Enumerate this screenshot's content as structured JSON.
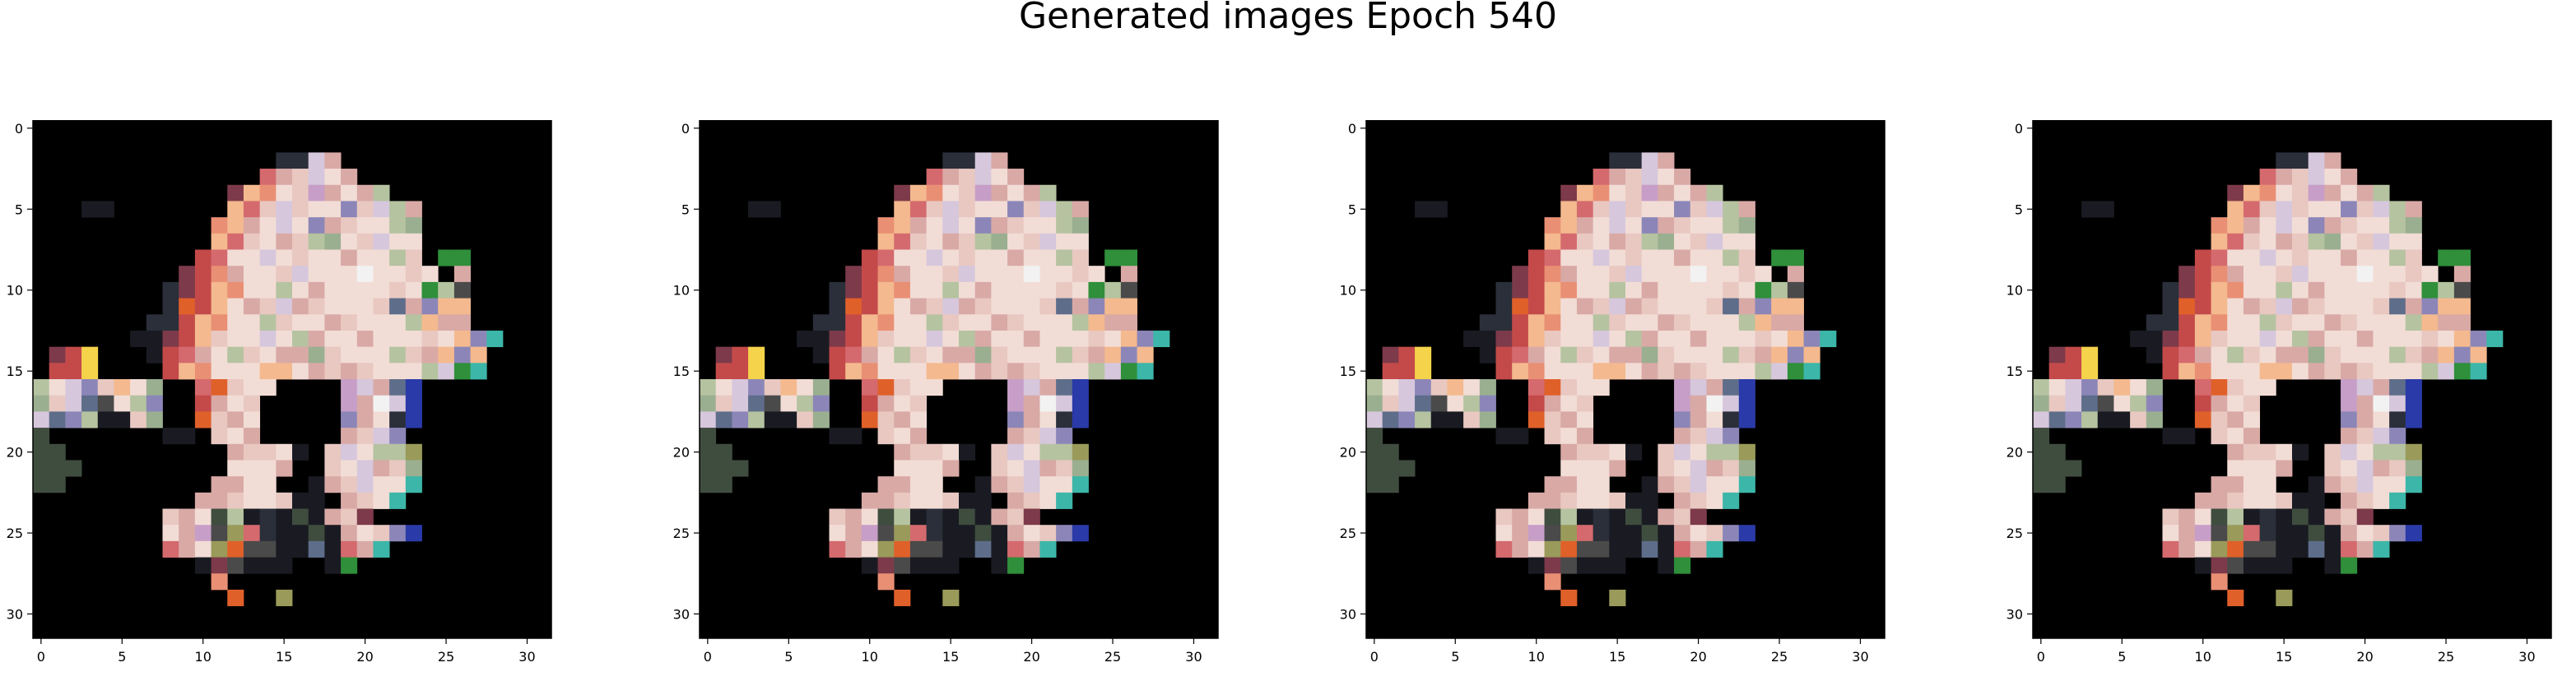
{
  "figure": {
    "title": "Generated images Epoch 540"
  },
  "chart_data": [
    {
      "type": "heatmap",
      "description_kind": "generated RGB image, 32x32 pixels",
      "grid_size": [
        32,
        32
      ],
      "xlim": [
        -0.5,
        31.5
      ],
      "ylim": [
        31.5,
        -0.5
      ],
      "xticks": [
        0,
        5,
        10,
        15,
        20,
        25,
        30
      ],
      "yticks": [
        0,
        5,
        10,
        15,
        20,
        25,
        30
      ],
      "background": "#000000"
    },
    {
      "type": "heatmap",
      "description_kind": "generated RGB image, 32x32 pixels",
      "grid_size": [
        32,
        32
      ],
      "xlim": [
        -0.5,
        31.5
      ],
      "ylim": [
        31.5,
        -0.5
      ],
      "xticks": [
        0,
        5,
        10,
        15,
        20,
        25,
        30
      ],
      "yticks": [
        0,
        5,
        10,
        15,
        20,
        25,
        30
      ],
      "background": "#000000"
    },
    {
      "type": "heatmap",
      "description_kind": "generated RGB image, 32x32 pixels",
      "grid_size": [
        32,
        32
      ],
      "xlim": [
        -0.5,
        31.5
      ],
      "ylim": [
        31.5,
        -0.5
      ],
      "xticks": [
        0,
        5,
        10,
        15,
        20,
        25,
        30
      ],
      "yticks": [
        0,
        5,
        10,
        15,
        20,
        25,
        30
      ],
      "background": "#000000"
    },
    {
      "type": "heatmap",
      "description_kind": "generated RGB image, 32x32 pixels",
      "grid_size": [
        32,
        32
      ],
      "xlim": [
        -0.5,
        31.5
      ],
      "ylim": [
        31.5,
        -0.5
      ],
      "xticks": [
        0,
        5,
        10,
        15,
        20,
        25,
        30
      ],
      "yticks": [
        0,
        5,
        10,
        15,
        20,
        25,
        30
      ],
      "background": "#000000"
    }
  ]
}
